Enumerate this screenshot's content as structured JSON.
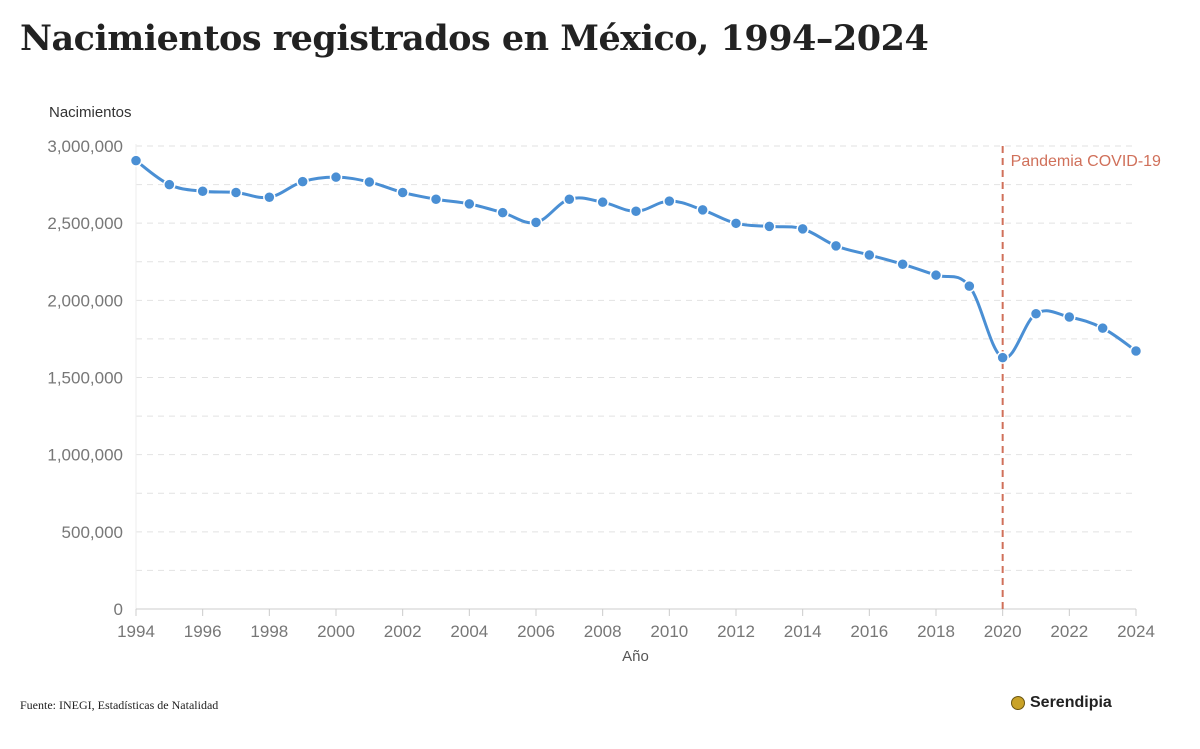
{
  "title": "Nacimientos registrados en México, 1994–2024",
  "source": "Fuente: INEGI, Estadísticas de Natalidad",
  "brand": {
    "name": "Serendipia",
    "icon": "serendipia-logo-icon"
  },
  "colors": {
    "line": "#4a8fd4",
    "point": "#4a8fd4",
    "annotation": "#d0705a",
    "grid": "#e2e2e2",
    "tick": "#777777"
  },
  "chart_data": {
    "type": "line",
    "title": "Nacimientos registrados en México, 1994–2024",
    "xlabel": "Año",
    "ylabel": "Nacimientos",
    "xlim": [
      1994,
      2024
    ],
    "ylim": [
      0,
      3000000
    ],
    "grid": true,
    "x_ticks": [
      "1994",
      "1996",
      "1998",
      "2000",
      "2002",
      "2004",
      "2006",
      "2008",
      "2010",
      "2012",
      "2014",
      "2016",
      "2018",
      "2020",
      "2022",
      "2024"
    ],
    "y_ticks": [
      "0",
      "500,000",
      "1,000,000",
      "1,500,000",
      "2,000,000",
      "2,500,000",
      "3,000,000"
    ],
    "y_tick_values": [
      0,
      500000,
      1000000,
      1500000,
      2000000,
      2500000,
      3000000
    ],
    "series": [
      {
        "x": [
          1994,
          1995,
          1996,
          1997,
          1998,
          1999,
          2000,
          2001,
          2002,
          2003,
          2004,
          2005,
          2006,
          2007,
          2008,
          2009,
          2010,
          2011,
          2012,
          2013,
          2014,
          2015,
          2016,
          2017,
          2018,
          2019,
          2020,
          2021,
          2022,
          2023,
          2024
        ],
        "values": [
          2905000,
          2750000,
          2707000,
          2699000,
          2668000,
          2769000,
          2798000,
          2767000,
          2699000,
          2655000,
          2625000,
          2568000,
          2505000,
          2655000,
          2636000,
          2577000,
          2643000,
          2586000,
          2499000,
          2479000,
          2463000,
          2353000,
          2294000,
          2234000,
          2163000,
          2092000,
          1629000,
          1913000,
          1892000,
          1820000,
          1672000
        ]
      }
    ],
    "annotations": [
      {
        "x": 2020,
        "label": "Pandemia COVID-19",
        "style": "dashed-vertical-line"
      }
    ]
  }
}
